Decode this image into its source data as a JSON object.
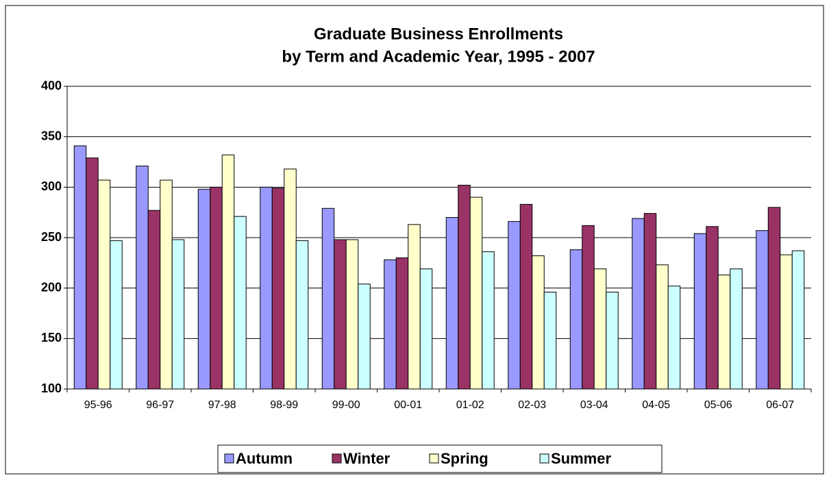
{
  "chart_data": {
    "type": "bar",
    "title": [
      "Graduate Business Enrollments",
      "by Term and Academic Year, 1995 - 2007"
    ],
    "categories": [
      "95-96",
      "96-97",
      "97-98",
      "98-99",
      "99-00",
      "00-01",
      "01-02",
      "02-03",
      "03-04",
      "04-05",
      "05-06",
      "06-07"
    ],
    "series": [
      {
        "name": "Autumn",
        "color": "#9999ff",
        "values": [
          341,
          321,
          298,
          300,
          279,
          228,
          270,
          266,
          238,
          269,
          254,
          257
        ]
      },
      {
        "name": "Winter",
        "color": "#993366",
        "values": [
          329,
          277,
          300,
          299,
          248,
          230,
          302,
          283,
          262,
          274,
          261,
          280
        ]
      },
      {
        "name": "Spring",
        "color": "#ffffcc",
        "values": [
          307,
          307,
          332,
          318,
          248,
          263,
          290,
          232,
          219,
          223,
          213,
          233
        ]
      },
      {
        "name": "Summer",
        "color": "#ccffff",
        "values": [
          247,
          248,
          271,
          247,
          204,
          219,
          236,
          196,
          196,
          202,
          219,
          237
        ]
      }
    ],
    "ylim": [
      100,
      400
    ],
    "yticks": [
      100,
      150,
      200,
      250,
      300,
      350,
      400
    ],
    "grid": true,
    "legend": "bottom"
  }
}
